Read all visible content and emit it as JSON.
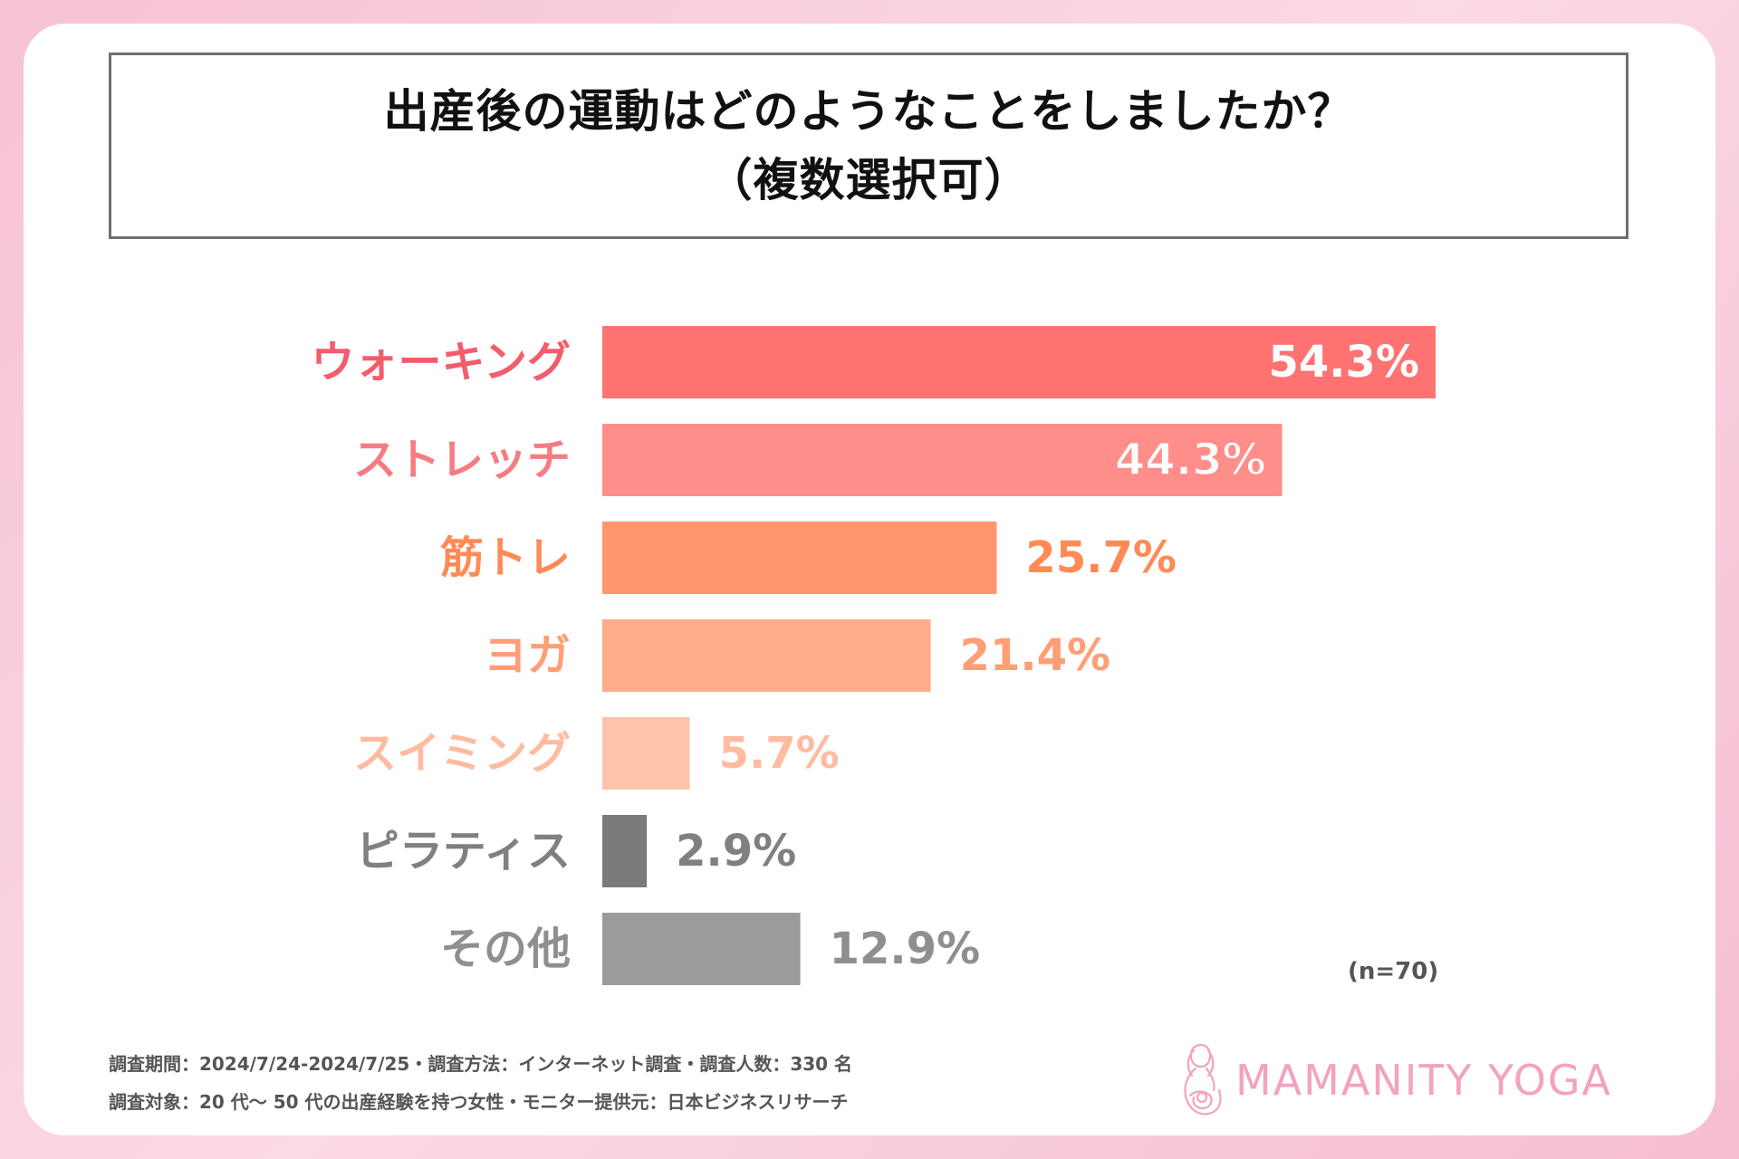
{
  "title": {
    "line1": "出産後の運動はどのようなことをしましたか？",
    "line2": "（複数選択可）"
  },
  "chart_data": {
    "type": "bar",
    "orientation": "horizontal",
    "categories": [
      "ウォーキング",
      "ストレッチ",
      "筋トレ",
      "ヨガ",
      "スイミング",
      "ピラティス",
      "その他"
    ],
    "values": [
      54.3,
      44.3,
      25.7,
      21.4,
      5.7,
      2.9,
      12.9
    ],
    "value_labels": [
      "54.3%",
      "44.3%",
      "25.7%",
      "21.4%",
      "5.7%",
      "2.9%",
      "12.9%"
    ],
    "bar_colors": [
      "#ff7272",
      "#ff8d8a",
      "#ff966c",
      "#ffac8a",
      "#ffc3a9",
      "#7a7a7a",
      "#9b9b9b"
    ],
    "label_colors": [
      "#f45c6c",
      "#f77b82",
      "#ff8a55",
      "#ff9e76",
      "#ffbba0",
      "#808080",
      "#8f8f8f"
    ],
    "value_label_inside": [
      true,
      true,
      false,
      false,
      false,
      false,
      false
    ],
    "xlim": [
      0,
      54.3
    ],
    "unit": "%"
  },
  "sample_size": "(n=70)",
  "footer": {
    "line1": "調査期間：2024/7/24-2024/7/25・調査方法：インターネット調査・調査人数：330 名",
    "line2": "調査対象：20 代～ 50 代の出産経験を持つ女性・モニター提供元：日本ビジネスリサーチ"
  },
  "logo": {
    "text": "MAMANITY YOGA",
    "color": "#f3a2c0"
  }
}
